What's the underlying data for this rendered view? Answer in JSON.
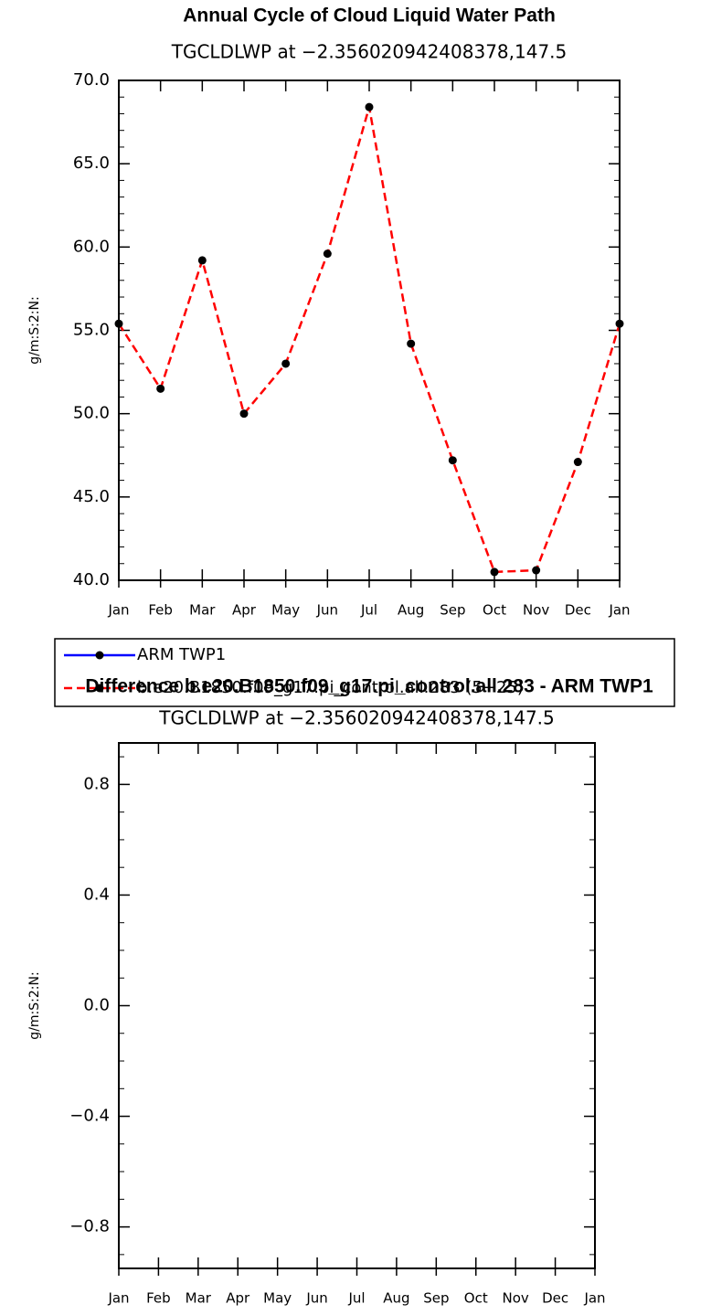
{
  "chart_data": [
    {
      "type": "line",
      "title": "Annual Cycle of Cloud Liquid Water Path",
      "subtitle": "TGCLDLWP at −2.356020942408378,147.5",
      "y_label": "g/m:S:2:N:",
      "categories": [
        "Jan",
        "Feb",
        "Mar",
        "Apr",
        "May",
        "Jun",
        "Jul",
        "Aug",
        "Sep",
        "Oct",
        "Nov",
        "Dec",
        "Jan"
      ],
      "series": [
        {
          "name": "ARM TWP1",
          "color": "#0000ff",
          "dashed": false,
          "marker_color": "#000000",
          "values": [
            null,
            null,
            null,
            null,
            null,
            null,
            null,
            null,
            null,
            null,
            null,
            null,
            null
          ]
        },
        {
          "name": "b.e20.B1850.f09_g17.pi_control.all.283 (5−25)",
          "color": "#ff0000",
          "dashed": true,
          "marker_color": "#000000",
          "values": [
            55.4,
            51.5,
            59.2,
            50.0,
            53.0,
            59.6,
            68.4,
            54.2,
            47.2,
            40.5,
            40.6,
            47.1,
            55.4
          ]
        }
      ],
      "ylim": [
        40,
        70
      ],
      "yticks": [
        {
          "value": 40,
          "label": "40.0"
        },
        {
          "value": 45,
          "label": "45.0"
        },
        {
          "value": 50,
          "label": "50.0"
        },
        {
          "value": 55,
          "label": "55.0"
        },
        {
          "value": 60,
          "label": "60.0"
        },
        {
          "value": 65,
          "label": "65.0"
        },
        {
          "value": 70,
          "label": "70.0"
        }
      ]
    },
    {
      "type": "line",
      "title": "Difference b.e20.B1850.f09_g17.pi_control.all.283 - ARM TWP1",
      "subtitle": "TGCLDLWP at −2.356020942408378,147.5",
      "y_label": "g/m:S:2:N:",
      "categories": [
        "Jan",
        "Feb",
        "Mar",
        "Apr",
        "May",
        "Jun",
        "Jul",
        "Aug",
        "Sep",
        "Oct",
        "Nov",
        "Dec",
        "Jan"
      ],
      "series": [],
      "ylim": [
        -0.95,
        0.95
      ],
      "yticks": [
        {
          "value": 0.8,
          "label": "0.8"
        },
        {
          "value": 0.4,
          "label": "0.4"
        },
        {
          "value": 0,
          "label": "0.0"
        },
        {
          "value": -0.4,
          "label": "−0.4"
        },
        {
          "value": -0.8,
          "label": "−0.8"
        }
      ]
    }
  ]
}
